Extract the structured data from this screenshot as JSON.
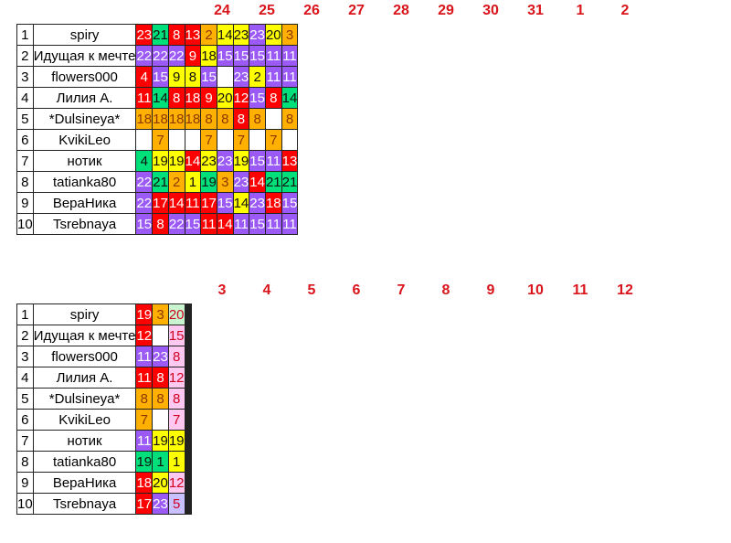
{
  "colors": {
    "red": "#ff0000",
    "green": "#00e07a",
    "purple": "#9b59f5",
    "yellow": "#ffff00",
    "orange": "#ffb000",
    "lpink": "#ffc8f0",
    "lgreen": "#c8f5d0",
    "lpurple": "#c8c0ff",
    "header_text": "#d9141b"
  },
  "tables": [
    {
      "days": [
        "24",
        "25",
        "26",
        "27",
        "28",
        "29",
        "30",
        "31",
        "1",
        "2"
      ],
      "rows": [
        {
          "num": "1",
          "name": "spiry",
          "cells": [
            [
              "23",
              "red"
            ],
            [
              "21",
              "green"
            ],
            [
              "8",
              "red"
            ],
            [
              "13",
              "red"
            ],
            [
              "2",
              "orange"
            ],
            [
              "14",
              "yellow"
            ],
            [
              "23",
              "yellow"
            ],
            [
              "23",
              "purple"
            ],
            [
              "20",
              "yellow"
            ],
            [
              "3",
              "orange"
            ]
          ]
        },
        {
          "num": "2",
          "name": "Идущая к мечте",
          "cells": [
            [
              "22",
              "purple"
            ],
            [
              "22",
              "purple"
            ],
            [
              "22",
              "purple"
            ],
            [
              "9",
              "red"
            ],
            [
              "18",
              "yellow"
            ],
            [
              "15",
              "purple"
            ],
            [
              "15",
              "purple"
            ],
            [
              "15",
              "purple"
            ],
            [
              "11",
              "purple"
            ],
            [
              "11",
              "purple"
            ]
          ]
        },
        {
          "num": "3",
          "name": "flowers000",
          "cells": [
            [
              "4",
              "red"
            ],
            [
              "15",
              "purple"
            ],
            [
              "9",
              "yellow"
            ],
            [
              "8",
              "yellow"
            ],
            [
              "15",
              "purple"
            ],
            [
              "",
              "white"
            ],
            [
              "23",
              "purple"
            ],
            [
              "2",
              "yellow"
            ],
            [
              "11",
              "purple"
            ],
            [
              "11",
              "purple"
            ]
          ]
        },
        {
          "num": "4",
          "name": "Лилия А.",
          "cells": [
            [
              "11",
              "red"
            ],
            [
              "14",
              "green"
            ],
            [
              "8",
              "red"
            ],
            [
              "18",
              "red"
            ],
            [
              "9",
              "red"
            ],
            [
              "20",
              "yellow"
            ],
            [
              "12",
              "red"
            ],
            [
              "15",
              "purple"
            ],
            [
              "8",
              "red"
            ],
            [
              "14",
              "green"
            ]
          ]
        },
        {
          "num": "5",
          "name": "*Dulsineya*",
          "cells": [
            [
              "18",
              "orange"
            ],
            [
              "18",
              "orange"
            ],
            [
              "18",
              "orange"
            ],
            [
              "18",
              "orange"
            ],
            [
              "8",
              "orange"
            ],
            [
              "8",
              "orange"
            ],
            [
              "8",
              "red"
            ],
            [
              "8",
              "orange"
            ],
            [
              "",
              "white"
            ],
            [
              "8",
              "orange"
            ]
          ]
        },
        {
          "num": "6",
          "name": "KvikiLeo",
          "cells": [
            [
              "",
              "white"
            ],
            [
              "7",
              "orange"
            ],
            [
              "",
              "white"
            ],
            [
              "",
              "white"
            ],
            [
              "7",
              "orange"
            ],
            [
              "",
              "white"
            ],
            [
              "7",
              "orange"
            ],
            [
              "",
              "white"
            ],
            [
              "7",
              "orange"
            ],
            [
              "",
              "white"
            ]
          ]
        },
        {
          "num": "7",
          "name": "нотик",
          "cells": [
            [
              "4",
              "green"
            ],
            [
              "19",
              "yellow"
            ],
            [
              "19",
              "yellow"
            ],
            [
              "14",
              "red"
            ],
            [
              "23",
              "yellow"
            ],
            [
              "23",
              "purple"
            ],
            [
              "19",
              "yellow"
            ],
            [
              "15",
              "purple"
            ],
            [
              "11",
              "purple"
            ],
            [
              "13",
              "red"
            ]
          ]
        },
        {
          "num": "8",
          "name": "tatianka80",
          "cells": [
            [
              "22",
              "purple"
            ],
            [
              "21",
              "green"
            ],
            [
              "2",
              "orange"
            ],
            [
              "1",
              "yellow"
            ],
            [
              "19",
              "green"
            ],
            [
              "3",
              "orange"
            ],
            [
              "23",
              "purple"
            ],
            [
              "14",
              "red"
            ],
            [
              "21",
              "green"
            ],
            [
              "21",
              "green"
            ]
          ]
        },
        {
          "num": "9",
          "name": "ВераНика",
          "cells": [
            [
              "22",
              "purple"
            ],
            [
              "17",
              "red"
            ],
            [
              "14",
              "red"
            ],
            [
              "11",
              "red"
            ],
            [
              "17",
              "red"
            ],
            [
              "15",
              "purple"
            ],
            [
              "14",
              "yellow"
            ],
            [
              "23",
              "purple"
            ],
            [
              "18",
              "red"
            ],
            [
              "15",
              "purple"
            ]
          ]
        },
        {
          "num": "10",
          "name": "Tsrebnaya",
          "cells": [
            [
              "15",
              "purple"
            ],
            [
              "8",
              "red"
            ],
            [
              "22",
              "purple"
            ],
            [
              "15",
              "purple"
            ],
            [
              "11",
              "red"
            ],
            [
              "14",
              "red"
            ],
            [
              "11",
              "purple"
            ],
            [
              "15",
              "purple"
            ],
            [
              "11",
              "purple"
            ],
            [
              "11",
              "purple"
            ]
          ]
        }
      ]
    },
    {
      "days": [
        "3",
        "4",
        "5",
        "6",
        "7",
        "8",
        "9",
        "10",
        "11",
        "12"
      ],
      "rows": [
        {
          "num": "1",
          "name": "spiry",
          "cells": [
            [
              "19",
              "red"
            ],
            [
              "3",
              "orange"
            ],
            [
              "20",
              "lgreen"
            ],
            [
              "",
              "white"
            ],
            [
              "",
              "white"
            ],
            [
              "",
              "white"
            ],
            [
              "",
              "white"
            ],
            [
              "",
              "white"
            ],
            [
              "",
              "white"
            ],
            [
              "",
              "white"
            ]
          ]
        },
        {
          "num": "2",
          "name": "Идущая к мечте",
          "cells": [
            [
              "12",
              "red"
            ],
            [
              "",
              "white"
            ],
            [
              "15",
              "lpink"
            ],
            [
              "",
              "white"
            ],
            [
              "",
              "white"
            ],
            [
              "",
              "white"
            ],
            [
              "",
              "white"
            ],
            [
              "",
              "white"
            ],
            [
              "",
              "white"
            ],
            [
              "",
              "white"
            ]
          ]
        },
        {
          "num": "3",
          "name": "flowers000",
          "cells": [
            [
              "11",
              "purple"
            ],
            [
              "23",
              "purple"
            ],
            [
              "8",
              "lpink"
            ],
            [
              "",
              "white"
            ],
            [
              "",
              "white"
            ],
            [
              "",
              "white"
            ],
            [
              "",
              "white"
            ],
            [
              "",
              "white"
            ],
            [
              "",
              "white"
            ],
            [
              "",
              "white"
            ]
          ]
        },
        {
          "num": "4",
          "name": "Лилия А.",
          "cells": [
            [
              "11",
              "red"
            ],
            [
              "8",
              "red"
            ],
            [
              "12",
              "lpink"
            ],
            [
              "",
              "white"
            ],
            [
              "",
              "white"
            ],
            [
              "",
              "white"
            ],
            [
              "",
              "white"
            ],
            [
              "",
              "white"
            ],
            [
              "",
              "white"
            ],
            [
              "",
              "white"
            ]
          ]
        },
        {
          "num": "5",
          "name": "*Dulsineya*",
          "cells": [
            [
              "8",
              "orange"
            ],
            [
              "8",
              "orange"
            ],
            [
              "8",
              "lpink"
            ],
            [
              "",
              "white"
            ],
            [
              "",
              "white"
            ],
            [
              "",
              "white"
            ],
            [
              "",
              "white"
            ],
            [
              "",
              "white"
            ],
            [
              "",
              "white"
            ],
            [
              "",
              "white"
            ]
          ]
        },
        {
          "num": "6",
          "name": "KvikiLeo",
          "cells": [
            [
              "7",
              "orange"
            ],
            [
              "",
              "white"
            ],
            [
              "7",
              "lpink"
            ],
            [
              "",
              "white"
            ],
            [
              "",
              "white"
            ],
            [
              "",
              "white"
            ],
            [
              "",
              "white"
            ],
            [
              "",
              "white"
            ],
            [
              "",
              "white"
            ],
            [
              "",
              "white"
            ]
          ]
        },
        {
          "num": "7",
          "name": "нотик",
          "cells": [
            [
              "11",
              "purple"
            ],
            [
              "19",
              "yellow"
            ],
            [
              "19",
              "yellow"
            ],
            [
              "",
              "white"
            ],
            [
              "",
              "white"
            ],
            [
              "",
              "white"
            ],
            [
              "",
              "white"
            ],
            [
              "",
              "white"
            ],
            [
              "",
              "white"
            ],
            [
              "",
              "white"
            ]
          ]
        },
        {
          "num": "8",
          "name": "tatianka80",
          "cells": [
            [
              "19",
              "green"
            ],
            [
              "1",
              "green"
            ],
            [
              "1",
              "yellow"
            ],
            [
              "",
              "white"
            ],
            [
              "",
              "white"
            ],
            [
              "",
              "white"
            ],
            [
              "",
              "white"
            ],
            [
              "",
              "white"
            ],
            [
              "",
              "white"
            ],
            [
              "",
              "white"
            ]
          ]
        },
        {
          "num": "9",
          "name": "ВераНика",
          "cells": [
            [
              "18",
              "red"
            ],
            [
              "20",
              "yellow"
            ],
            [
              "12",
              "lpink"
            ],
            [
              "",
              "white"
            ],
            [
              "",
              "white"
            ],
            [
              "",
              "white"
            ],
            [
              "",
              "white"
            ],
            [
              "",
              "white"
            ],
            [
              "",
              "white"
            ],
            [
              "",
              "white"
            ]
          ]
        },
        {
          "num": "10",
          "name": "Tsrebnaya",
          "cells": [
            [
              "17",
              "red"
            ],
            [
              "23",
              "purple"
            ],
            [
              "5",
              "lpurple"
            ],
            [
              "",
              "white"
            ],
            [
              "",
              "white"
            ],
            [
              "",
              "white"
            ],
            [
              "",
              "white"
            ],
            [
              "",
              "white"
            ],
            [
              "",
              "white"
            ],
            [
              "",
              "white"
            ]
          ]
        }
      ]
    }
  ]
}
